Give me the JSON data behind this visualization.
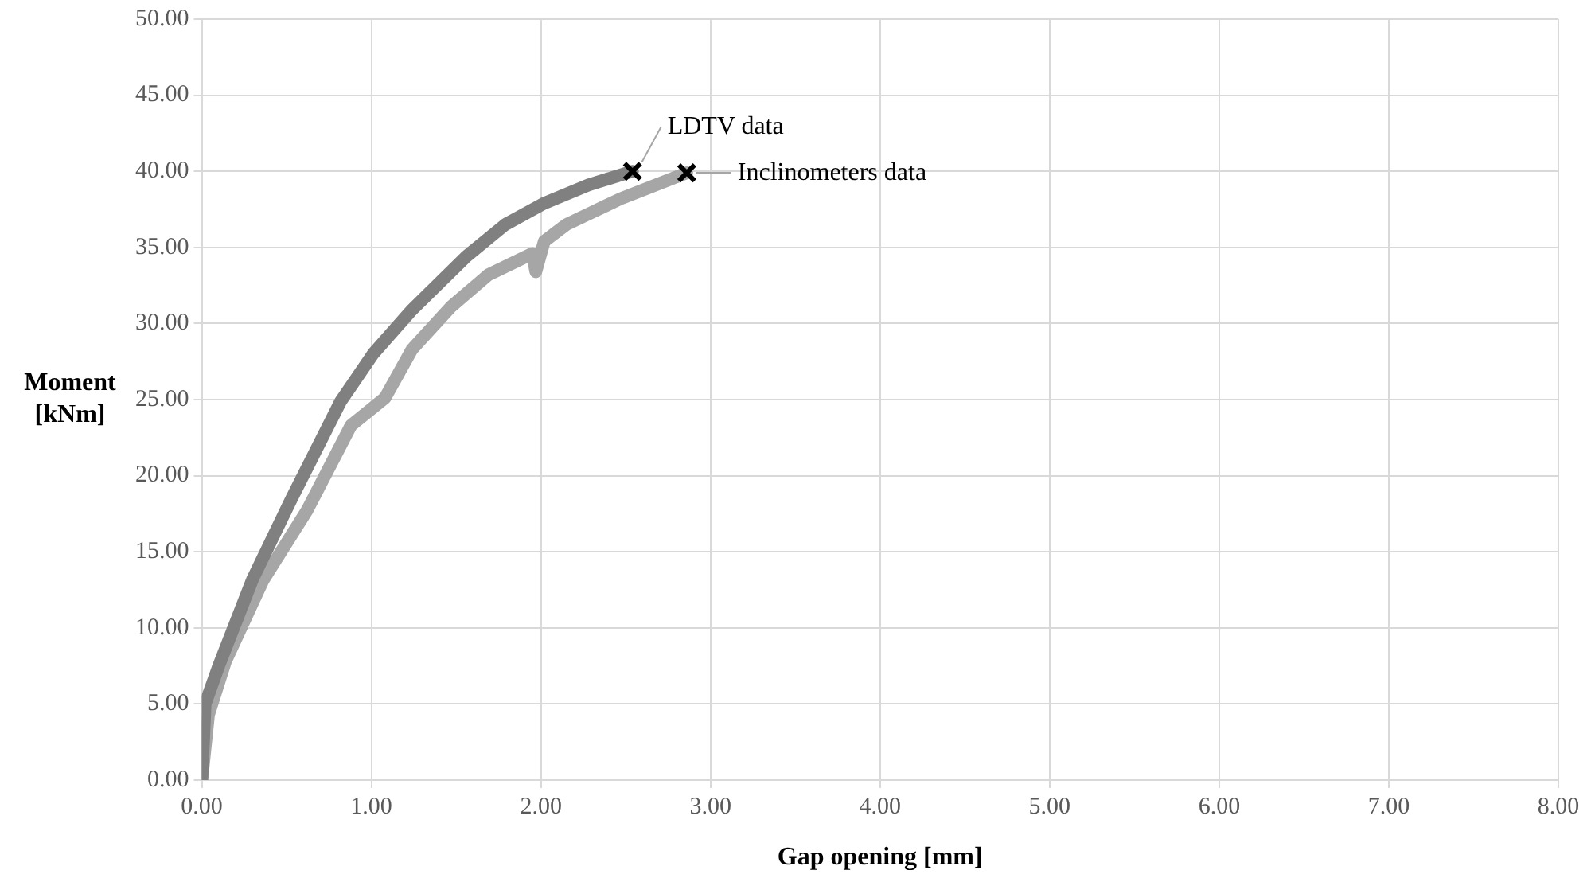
{
  "chart_data": {
    "type": "line",
    "xlabel": "Gap opening [mm]",
    "ylabel": "Moment [kNm]",
    "xlim": [
      0,
      8
    ],
    "ylim": [
      0,
      50
    ],
    "xticks": [
      {
        "value": 0,
        "label": "0.00"
      },
      {
        "value": 1,
        "label": "1.00"
      },
      {
        "value": 2,
        "label": "2.00"
      },
      {
        "value": 3,
        "label": "3.00"
      },
      {
        "value": 4,
        "label": "4.00"
      },
      {
        "value": 5,
        "label": "5.00"
      },
      {
        "value": 6,
        "label": "6.00"
      },
      {
        "value": 7,
        "label": "7.00"
      },
      {
        "value": 8,
        "label": "8.00"
      }
    ],
    "yticks": [
      {
        "value": 0,
        "label": "0.00"
      },
      {
        "value": 5,
        "label": "5.00"
      },
      {
        "value": 10,
        "label": "10.00"
      },
      {
        "value": 15,
        "label": "15.00"
      },
      {
        "value": 20,
        "label": "20.00"
      },
      {
        "value": 25,
        "label": "25.00"
      },
      {
        "value": 30,
        "label": "30.00"
      },
      {
        "value": 35,
        "label": "35.00"
      },
      {
        "value": 40,
        "label": "40.00"
      },
      {
        "value": 45,
        "label": "45.00"
      },
      {
        "value": 50,
        "label": "50.00"
      }
    ],
    "grid": true,
    "series": [
      {
        "name": "LDTV data",
        "color": "#808080",
        "x": [
          0,
          0.02,
          0.1,
          0.3,
          0.53,
          0.82,
          1.01,
          1.24,
          1.56,
          1.79,
          2.02,
          2.28,
          2.54
        ],
        "values": [
          0,
          5.0,
          7.5,
          13.2,
          18.5,
          24.9,
          28.0,
          30.9,
          34.4,
          36.5,
          37.9,
          39.1,
          40.0
        ]
      },
      {
        "name": "Inclinometers data",
        "color": "#a6a6a6",
        "x": [
          0,
          0.04,
          0.14,
          0.36,
          0.62,
          0.88,
          1.08,
          1.24,
          1.47,
          1.69,
          1.95,
          1.97,
          2.02,
          2.15,
          2.47,
          2.86
        ],
        "values": [
          0,
          4.3,
          7.8,
          13.1,
          17.7,
          23.3,
          25.1,
          28.3,
          31.1,
          33.2,
          34.6,
          33.4,
          35.4,
          36.5,
          38.2,
          39.9
        ]
      }
    ]
  }
}
